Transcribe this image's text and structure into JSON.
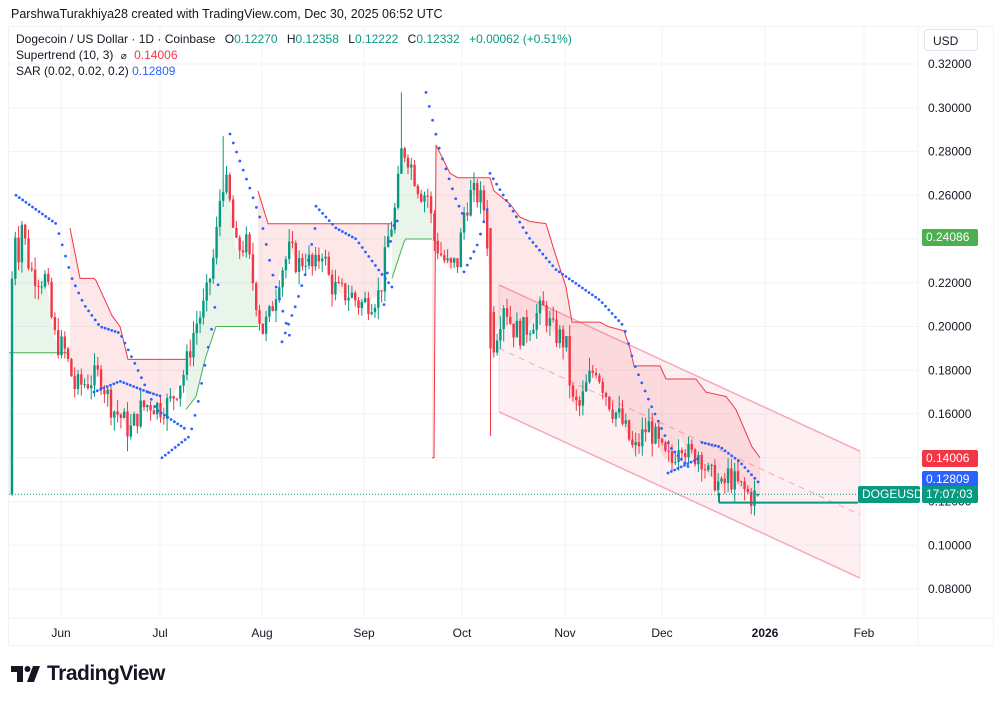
{
  "attribution": "ParshwaTurakhiya28 created with TradingView.com, Dec 30, 2025 06:52 UTC",
  "legend": {
    "symbol": "Dogecoin / US Dollar · 1D · Coinbase",
    "open_label": "O",
    "open": "0.12270",
    "high_label": "H",
    "high": "0.12358",
    "low_label": "L",
    "low": "0.12222",
    "close_label": "C",
    "close": "0.12332",
    "change": "+0.00062 (+0.51%)",
    "supertrend_label": "Supertrend (10, 3)",
    "supertrend_icon": "hidden-eye-icon",
    "supertrend_value": "0.14006",
    "sar_label": "SAR (0.02, 0.02, 0.2)",
    "sar_value": "0.12809"
  },
  "currency_button": "USD",
  "price_tags": {
    "high_marker": "0.24086",
    "supertrend": "0.14006",
    "sar": "0.12809",
    "symbol": "DOGEUSD",
    "countdown": "17:07:03"
  },
  "colors": {
    "up": "#089981",
    "down": "#f23645",
    "sar": "#2962ff",
    "supertrend_up": "#4caf50",
    "supertrend_down": "#f23645",
    "channel": "#f7a8b8",
    "marker_green": "#4caf50"
  },
  "logo": {
    "text": "TradingView",
    "icon": "tradingview-logo-icon"
  },
  "chart_data": {
    "type": "candlestick",
    "title": "Dogecoin / US Dollar · 1D · Coinbase",
    "xlabel": "",
    "ylabel": "USD",
    "x_ticks": [
      "Jun",
      "Jul",
      "Aug",
      "Sep",
      "Oct",
      "Nov",
      "Dec",
      "2026",
      "Feb"
    ],
    "y_ticks": [
      "0.32000",
      "0.30000",
      "0.28000",
      "0.26000",
      "0.22000",
      "0.20000",
      "0.18000",
      "0.16000",
      "0.12000",
      "0.10000",
      "0.08000"
    ],
    "ylim": [
      0.07,
      0.33
    ],
    "grid": true,
    "last": {
      "open": 0.1227,
      "high": 0.12358,
      "low": 0.12222,
      "close": 0.12332
    },
    "indicators": [
      {
        "name": "Supertrend (10, 3)",
        "value": 0.14006
      },
      {
        "name": "SAR (0.02, 0.02, 0.2)",
        "value": 0.12809
      }
    ],
    "annotations": [
      {
        "type": "descending-channel",
        "upper_start": 0.219,
        "upper_end": 0.143,
        "lower_start": 0.161,
        "lower_end": 0.085,
        "from": "Oct 12",
        "to": "Feb 5"
      },
      {
        "type": "horizontal-line",
        "price": 0.12,
        "color": "#089981",
        "from": "Dec 18"
      },
      {
        "type": "price-marker",
        "price": 0.24086
      }
    ],
    "closes_approx": [
      {
        "date": "May 20",
        "close": 0.233
      },
      {
        "date": "May 25",
        "close": 0.222
      },
      {
        "date": "Jun 1",
        "close": 0.19
      },
      {
        "date": "Jun 8",
        "close": 0.18
      },
      {
        "date": "Jun 15",
        "close": 0.172
      },
      {
        "date": "Jun 22",
        "close": 0.152
      },
      {
        "date": "Jul 1",
        "close": 0.163
      },
      {
        "date": "Jul 10",
        "close": 0.2
      },
      {
        "date": "Jul 20",
        "close": 0.268
      },
      {
        "date": "Jul 25",
        "close": 0.238
      },
      {
        "date": "Aug 2",
        "close": 0.196
      },
      {
        "date": "Aug 10",
        "close": 0.235
      },
      {
        "date": "Aug 20",
        "close": 0.218
      },
      {
        "date": "Aug 30",
        "close": 0.213
      },
      {
        "date": "Sep 8",
        "close": 0.245
      },
      {
        "date": "Sep 13",
        "close": 0.28
      },
      {
        "date": "Sep 22",
        "close": 0.24
      },
      {
        "date": "Oct 1",
        "close": 0.255
      },
      {
        "date": "Oct 10",
        "close": 0.19
      },
      {
        "date": "Oct 15",
        "close": 0.2
      },
      {
        "date": "Oct 27",
        "close": 0.205
      },
      {
        "date": "Nov 4",
        "close": 0.163
      },
      {
        "date": "Nov 10",
        "close": 0.18
      },
      {
        "date": "Nov 20",
        "close": 0.155
      },
      {
        "date": "Dec 1",
        "close": 0.138
      },
      {
        "date": "Dec 8",
        "close": 0.145
      },
      {
        "date": "Dec 18",
        "close": 0.125
      },
      {
        "date": "Dec 30",
        "close": 0.12332
      }
    ]
  }
}
